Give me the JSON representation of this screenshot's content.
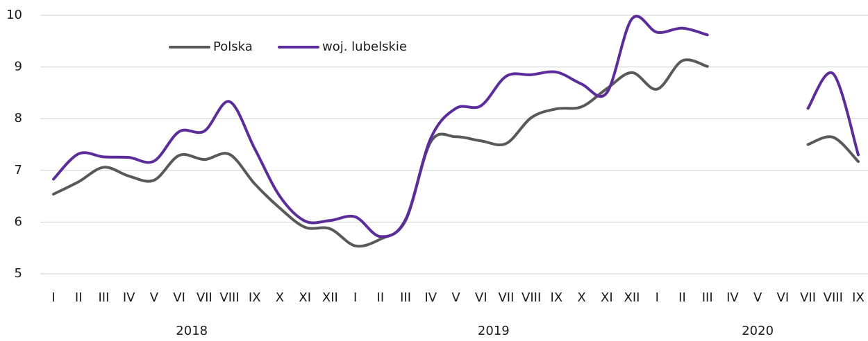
{
  "chart_data": {
    "type": "line",
    "categories": [
      "I",
      "II",
      "III",
      "IV",
      "V",
      "VI",
      "VII",
      "VIII",
      "IX",
      "X",
      "XI",
      "XII",
      "I",
      "II",
      "III",
      "IV",
      "V",
      "VI",
      "VII",
      "VIII",
      "IX",
      "X",
      "XI",
      "XII",
      "I",
      "II",
      "III",
      "IV",
      "V",
      "VI",
      "VII",
      "VIII",
      "IX"
    ],
    "groups": [
      "2018",
      "2019",
      "2020"
    ],
    "series": [
      {
        "name": "Polska",
        "color": "#595959",
        "values": [
          6.54,
          6.78,
          7.06,
          6.89,
          6.81,
          7.29,
          7.21,
          7.31,
          6.74,
          6.27,
          5.9,
          5.87,
          5.54,
          5.67,
          6.03,
          7.55,
          7.65,
          7.57,
          7.52,
          8.02,
          8.19,
          8.23,
          8.58,
          8.89,
          8.57,
          9.12,
          9.01,
          null,
          null,
          null,
          7.5,
          7.64,
          7.17
        ]
      },
      {
        "name": "woj. lubelskie",
        "color": "#5b2c9a",
        "values": [
          6.83,
          7.32,
          7.26,
          7.25,
          7.18,
          7.75,
          7.76,
          8.33,
          7.42,
          6.5,
          6.02,
          6.03,
          6.1,
          5.72,
          6.05,
          7.62,
          8.2,
          8.25,
          8.82,
          8.85,
          8.9,
          8.67,
          8.5,
          9.93,
          9.67,
          9.75,
          9.62,
          null,
          null,
          null,
          8.2,
          8.87,
          7.3
        ]
      }
    ],
    "ylim": [
      5,
      10
    ],
    "yticks": [
      5,
      6,
      7,
      8,
      9,
      10
    ],
    "grid": true,
    "legend": "top-left"
  }
}
